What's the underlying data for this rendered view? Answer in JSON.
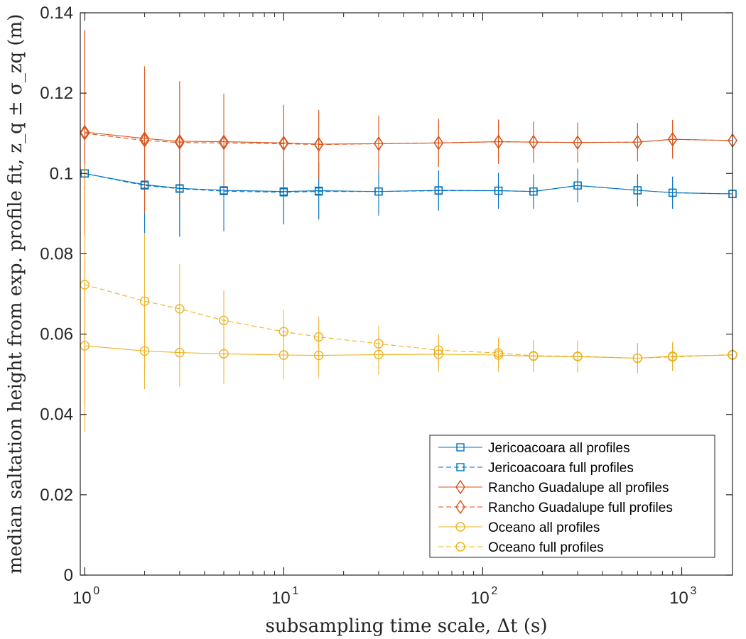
{
  "chart_data": {
    "type": "line",
    "xscale": "log",
    "xlim": [
      0.95,
      1800
    ],
    "ylim": [
      0,
      0.14
    ],
    "xticks": [
      {
        "value": 1,
        "base": "10",
        "exp": "0"
      },
      {
        "value": 10,
        "base": "10",
        "exp": "1"
      },
      {
        "value": 100,
        "base": "10",
        "exp": "2"
      },
      {
        "value": 1000,
        "base": "10",
        "exp": "3"
      }
    ],
    "yticks": [
      {
        "value": 0,
        "label": "0"
      },
      {
        "value": 0.02,
        "label": "0.02"
      },
      {
        "value": 0.04,
        "label": "0.04"
      },
      {
        "value": 0.06,
        "label": "0.06"
      },
      {
        "value": 0.08,
        "label": "0.08"
      },
      {
        "value": 0.1,
        "label": "0.1"
      },
      {
        "value": 0.12,
        "label": "0.12"
      },
      {
        "value": 0.14,
        "label": "0.14"
      }
    ],
    "xlabel": "subsampling time scale, Δt (s)",
    "ylabel": "median saltation height from exp. profile fit, z_q ± σ_zq (m)",
    "grid": false,
    "legend_position": "bottom-right",
    "x": [
      1,
      2,
      3,
      5,
      10,
      15,
      30,
      60,
      120,
      180,
      300,
      600,
      900,
      1800
    ],
    "series": [
      {
        "name": "Jericoacoara all profiles",
        "color": "#0072BD",
        "marker": "square",
        "dash": "solid",
        "y": [
          0.1,
          0.0972,
          0.0963,
          0.0958,
          0.0955,
          0.0957,
          0.0955,
          0.0958,
          0.0957,
          0.0955,
          0.097,
          0.0958,
          0.0952,
          0.0949
        ],
        "err": [
          0.0,
          0.0125,
          0.012,
          0.01,
          0.008,
          0.007,
          0.006,
          0.005,
          0.0045,
          0.0043,
          0.0042,
          0.004,
          0.004,
          0.004
        ]
      },
      {
        "name": "Jericoacoara full profiles",
        "color": "#0072BD",
        "marker": "square",
        "dash": "dashed",
        "y": [
          0.1,
          0.097,
          0.0962,
          0.0956,
          0.0953,
          0.0955,
          0.0955,
          0.0957,
          0.0957,
          0.0955,
          0.097,
          0.0958,
          0.0952,
          0.0949
        ],
        "err": [
          0.0,
          0.0125,
          0.012,
          0.01,
          0.008,
          0.007,
          0.006,
          0.005,
          0.0045,
          0.0043,
          0.0042,
          0.004,
          0.004,
          0.004
        ]
      },
      {
        "name": "Rancho Guadalupe all profiles",
        "color": "#D95319",
        "marker": "diamond",
        "dash": "solid",
        "y": [
          0.1103,
          0.1087,
          0.108,
          0.1079,
          0.1076,
          0.1073,
          0.1074,
          0.1076,
          0.1079,
          0.1078,
          0.1077,
          0.1078,
          0.1085,
          0.1082
        ],
        "err": [
          0.0255,
          0.018,
          0.015,
          0.012,
          0.0095,
          0.0085,
          0.007,
          0.006,
          0.0055,
          0.0052,
          0.005,
          0.0048,
          0.0048,
          0.0048
        ]
      },
      {
        "name": "Rancho Guadalupe full profiles",
        "color": "#D95319",
        "marker": "diamond",
        "dash": "dashed",
        "y": [
          0.11,
          0.1082,
          0.1077,
          0.1076,
          0.1074,
          0.1072,
          0.1074,
          0.1076,
          0.1079,
          0.1078,
          0.1077,
          0.1078,
          0.1085,
          0.1082
        ],
        "err": [
          0.0255,
          0.018,
          0.015,
          0.012,
          0.0095,
          0.0085,
          0.007,
          0.006,
          0.0055,
          0.0052,
          0.005,
          0.0048,
          0.0048,
          0.0048
        ]
      },
      {
        "name": "Oceano all profiles",
        "color": "#EDB120",
        "marker": "circle",
        "dash": "solid",
        "y": [
          0.0571,
          0.0558,
          0.0554,
          0.0551,
          0.0548,
          0.0547,
          0.0549,
          0.055,
          0.0548,
          0.0545,
          0.0544,
          0.054,
          0.0545,
          0.0548
        ],
        "err": [
          0.0215,
          0.0095,
          0.0085,
          0.0075,
          0.006,
          0.0055,
          0.005,
          0.0045,
          0.0042,
          0.004,
          0.004,
          0.0038,
          0.0036,
          0.0036
        ]
      },
      {
        "name": "Oceano full profiles",
        "color": "#EDB120",
        "marker": "circle",
        "dash": "dashed",
        "y": [
          0.0723,
          0.0682,
          0.0663,
          0.0634,
          0.0606,
          0.0593,
          0.0576,
          0.056,
          0.0553,
          0.0546,
          0.0545,
          0.054,
          0.0543,
          0.0549
        ],
        "err": [
          0.03,
          0.017,
          0.0112,
          0.0075,
          0.0055,
          0.005,
          0.0045,
          0.004,
          0.0038,
          0.0038,
          0.0038,
          0.0035,
          0.0035,
          0.0035
        ]
      }
    ]
  }
}
